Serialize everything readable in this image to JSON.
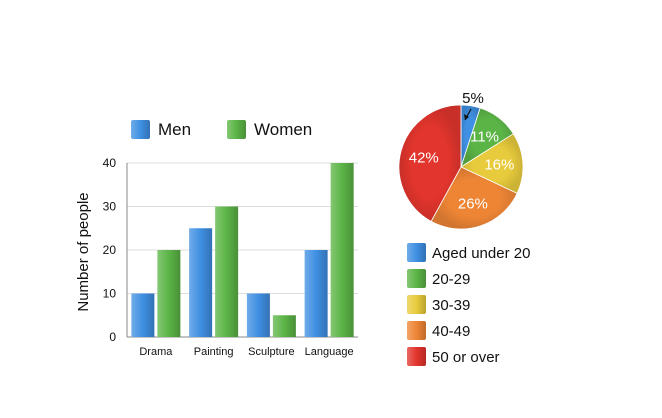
{
  "chart_data": [
    {
      "type": "bar",
      "categories": [
        "Drama",
        "Painting",
        "Sculpture",
        "Language"
      ],
      "series": [
        {
          "name": "Men",
          "values": [
            10,
            25,
            10,
            20
          ],
          "color": "#3f8fe2"
        },
        {
          "name": "Women",
          "values": [
            20,
            30,
            5,
            40
          ],
          "color": "#5bb446"
        }
      ],
      "ylabel": "Number of people",
      "ylim": [
        0,
        40
      ],
      "yticks": [
        "0",
        "10",
        "20",
        "30",
        "40"
      ],
      "grid": true,
      "legend_position": "top"
    },
    {
      "type": "pie",
      "slices": [
        {
          "label": "Aged under 20",
          "value": 5,
          "text": "5%",
          "color": "#3f8fe2"
        },
        {
          "label": "20-29",
          "value": 11,
          "text": "11%",
          "color": "#5bb446"
        },
        {
          "label": "30-39",
          "value": 16,
          "text": "16%",
          "color": "#e8cb3c"
        },
        {
          "label": "40-49",
          "value": 26,
          "text": "26%",
          "color": "#ee8535"
        },
        {
          "label": "50 or over",
          "value": 42,
          "text": "42%",
          "color": "#e2352d"
        }
      ],
      "legend_position": "bottom"
    }
  ]
}
